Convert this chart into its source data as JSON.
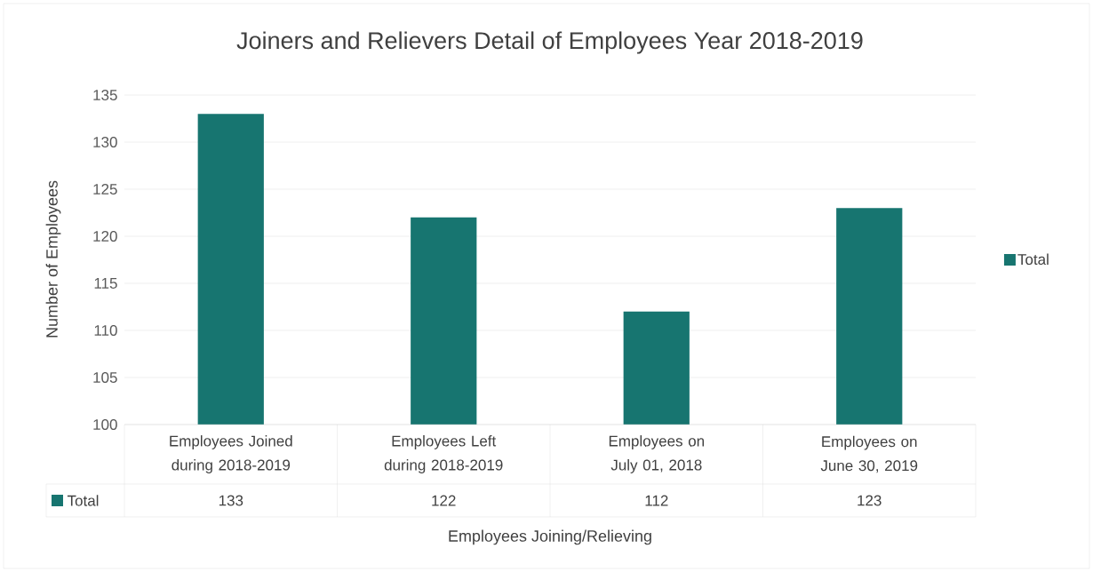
{
  "chart_data": {
    "type": "bar",
    "title": "Joiners and Relievers Detail of Employees Year 2018-2019",
    "xlabel": "Employees Joining/Relieving",
    "ylabel": "Number of Employees",
    "categories": [
      "Employees Joined during 2018-2019",
      "Employees Left during 2018-2019",
      "Employees on July 01, 2018",
      "Employees on June 30, 2019"
    ],
    "series": [
      {
        "name": "Total",
        "color": "#177570",
        "values": [
          133,
          122,
          112,
          123
        ]
      }
    ],
    "ylim": [
      100,
      135
    ],
    "yticks": [
      100,
      105,
      110,
      115,
      120,
      125,
      130,
      135
    ],
    "grid": "y",
    "legend": "right",
    "data_labels": true
  }
}
